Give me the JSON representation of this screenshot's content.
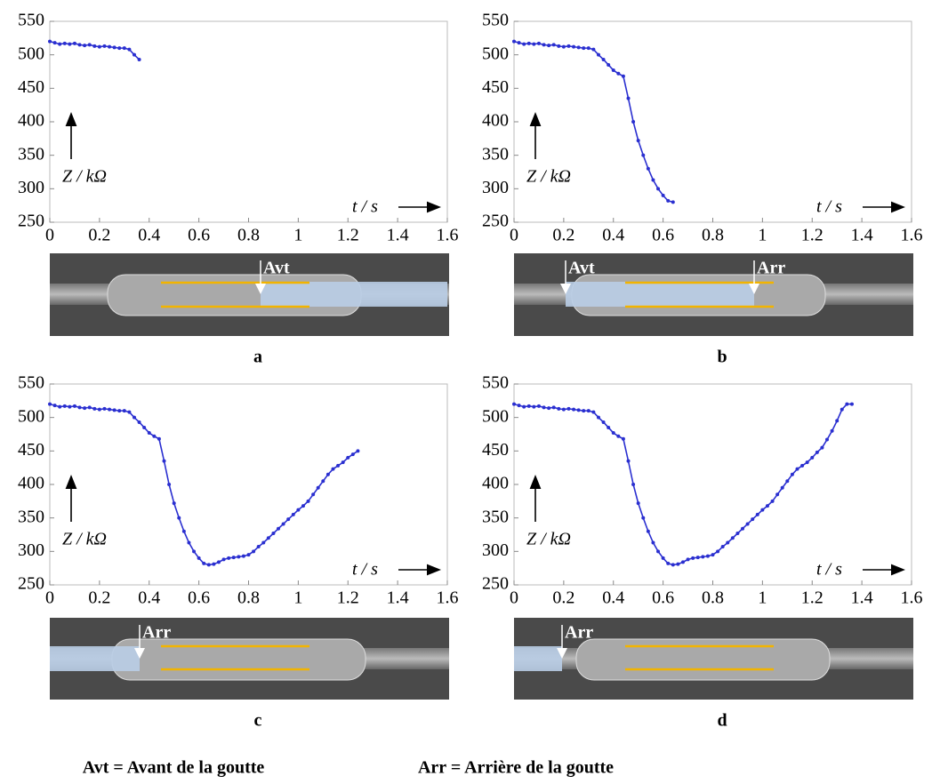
{
  "chart_data": [
    {
      "type": "line",
      "ylabel": "Z / kΩ",
      "xlabel": "t / s",
      "panel": "a",
      "color": "#2a2fd0",
      "x": [
        0,
        0.02,
        0.04,
        0.06,
        0.08,
        0.1,
        0.12,
        0.14,
        0.16,
        0.18,
        0.2,
        0.22,
        0.24,
        0.26,
        0.28,
        0.3,
        0.32,
        0.34,
        0.36
      ],
      "values": [
        520,
        518,
        516,
        517,
        516,
        517,
        515,
        514,
        515,
        513,
        512,
        513,
        512,
        511,
        510,
        510,
        508,
        500,
        493
      ],
      "xlim": [
        0,
        1.6
      ],
      "ylim": [
        250,
        550
      ],
      "xticks": [
        0,
        0.2,
        0.4,
        0.6,
        0.8,
        1,
        1.2,
        1.4,
        1.6
      ],
      "yticks": [
        250,
        300,
        350,
        400,
        450,
        500,
        550
      ]
    },
    {
      "type": "line",
      "ylabel": "Z / kΩ",
      "xlabel": "t / s",
      "panel": "b",
      "color": "#2a2fd0",
      "x": [
        0,
        0.02,
        0.04,
        0.06,
        0.08,
        0.1,
        0.12,
        0.14,
        0.16,
        0.18,
        0.2,
        0.22,
        0.24,
        0.26,
        0.28,
        0.3,
        0.32,
        0.34,
        0.36,
        0.38,
        0.4,
        0.42,
        0.44,
        0.46,
        0.48,
        0.5,
        0.52,
        0.54,
        0.56,
        0.58,
        0.6,
        0.62,
        0.64
      ],
      "values": [
        520,
        518,
        516,
        517,
        516,
        517,
        515,
        514,
        515,
        513,
        512,
        513,
        512,
        511,
        510,
        510,
        508,
        500,
        493,
        485,
        477,
        472,
        468,
        435,
        400,
        372,
        350,
        330,
        313,
        300,
        290,
        282,
        280
      ],
      "xlim": [
        0,
        1.6
      ],
      "ylim": [
        250,
        550
      ],
      "xticks": [
        0,
        0.2,
        0.4,
        0.6,
        0.8,
        1,
        1.2,
        1.4,
        1.6
      ],
      "yticks": [
        250,
        300,
        350,
        400,
        450,
        500,
        550
      ]
    },
    {
      "type": "line",
      "ylabel": "Z / kΩ",
      "xlabel": "t / s",
      "panel": "c",
      "color": "#2a2fd0",
      "x": [
        0,
        0.02,
        0.04,
        0.06,
        0.08,
        0.1,
        0.12,
        0.14,
        0.16,
        0.18,
        0.2,
        0.22,
        0.24,
        0.26,
        0.28,
        0.3,
        0.32,
        0.34,
        0.36,
        0.38,
        0.4,
        0.42,
        0.44,
        0.46,
        0.48,
        0.5,
        0.52,
        0.54,
        0.56,
        0.58,
        0.6,
        0.62,
        0.64,
        0.66,
        0.68,
        0.7,
        0.72,
        0.74,
        0.76,
        0.78,
        0.8,
        0.82,
        0.84,
        0.86,
        0.88,
        0.9,
        0.92,
        0.94,
        0.96,
        0.98,
        1,
        1.02,
        1.04,
        1.06,
        1.08,
        1.1,
        1.12,
        1.14,
        1.16,
        1.18,
        1.2,
        1.22,
        1.24
      ],
      "values": [
        520,
        518,
        516,
        517,
        516,
        517,
        515,
        514,
        515,
        513,
        512,
        513,
        512,
        511,
        510,
        510,
        508,
        500,
        493,
        485,
        477,
        472,
        468,
        435,
        400,
        372,
        350,
        330,
        313,
        300,
        290,
        282,
        280,
        281,
        284,
        288,
        290,
        291,
        292,
        293,
        295,
        300,
        307,
        313,
        320,
        327,
        334,
        341,
        348,
        355,
        362,
        368,
        375,
        385,
        395,
        405,
        415,
        423,
        428,
        433,
        440,
        445,
        450
      ],
      "xlim": [
        0,
        1.6
      ],
      "ylim": [
        250,
        550
      ],
      "xticks": [
        0,
        0.2,
        0.4,
        0.6,
        0.8,
        1,
        1.2,
        1.4,
        1.6
      ],
      "yticks": [
        250,
        300,
        350,
        400,
        450,
        500,
        550
      ]
    },
    {
      "type": "line",
      "ylabel": "Z / kΩ",
      "xlabel": "t / s",
      "panel": "d",
      "color": "#2a2fd0",
      "x": [
        0,
        0.02,
        0.04,
        0.06,
        0.08,
        0.1,
        0.12,
        0.14,
        0.16,
        0.18,
        0.2,
        0.22,
        0.24,
        0.26,
        0.28,
        0.3,
        0.32,
        0.34,
        0.36,
        0.38,
        0.4,
        0.42,
        0.44,
        0.46,
        0.48,
        0.5,
        0.52,
        0.54,
        0.56,
        0.58,
        0.6,
        0.62,
        0.64,
        0.66,
        0.68,
        0.7,
        0.72,
        0.74,
        0.76,
        0.78,
        0.8,
        0.82,
        0.84,
        0.86,
        0.88,
        0.9,
        0.92,
        0.94,
        0.96,
        0.98,
        1,
        1.02,
        1.04,
        1.06,
        1.08,
        1.1,
        1.12,
        1.14,
        1.16,
        1.18,
        1.2,
        1.22,
        1.24,
        1.26,
        1.28,
        1.3,
        1.32,
        1.34,
        1.36
      ],
      "values": [
        520,
        518,
        516,
        517,
        516,
        517,
        515,
        514,
        515,
        513,
        512,
        513,
        512,
        511,
        510,
        510,
        508,
        500,
        493,
        485,
        477,
        472,
        468,
        435,
        400,
        372,
        350,
        330,
        313,
        300,
        290,
        282,
        280,
        281,
        284,
        288,
        290,
        291,
        292,
        293,
        295,
        300,
        307,
        313,
        320,
        327,
        334,
        341,
        348,
        355,
        362,
        368,
        375,
        385,
        395,
        405,
        415,
        423,
        428,
        433,
        440,
        448,
        455,
        467,
        480,
        495,
        512,
        520,
        520
      ],
      "xlim": [
        0,
        1.6
      ],
      "ylim": [
        250,
        550
      ],
      "xticks": [
        0,
        0.2,
        0.4,
        0.6,
        0.8,
        1,
        1.2,
        1.4,
        1.6
      ],
      "yticks": [
        250,
        300,
        350,
        400,
        450,
        500,
        550
      ]
    }
  ],
  "photos": [
    {
      "annotations": [
        "Avt"
      ]
    },
    {
      "annotations": [
        "Avt",
        "Arr"
      ]
    },
    {
      "annotations": [
        "Arr"
      ]
    },
    {
      "annotations": [
        "Arr"
      ]
    }
  ],
  "footer": [
    "Avt = Avant de la goutte",
    "Arr = Arrière de la goutte"
  ]
}
